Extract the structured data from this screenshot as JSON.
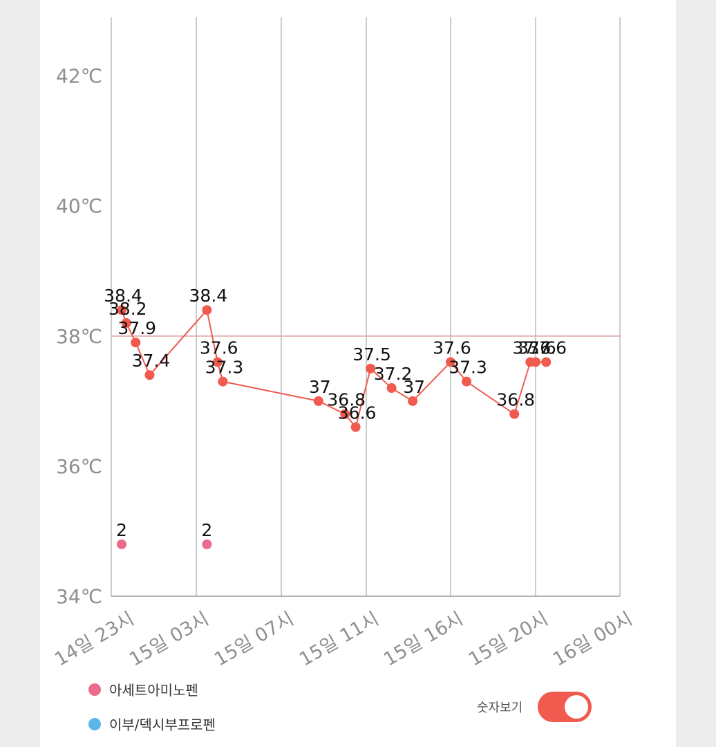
{
  "chart_data": {
    "type": "line",
    "y_ticks": [
      "34℃",
      "36℃",
      "38℃",
      "40℃",
      "42℃"
    ],
    "ylim": [
      34,
      42.9
    ],
    "x_ticks": [
      "14일 23시",
      "15일 03시",
      "15일 07시",
      "15일 11시",
      "15일 16시",
      "15일 20시",
      "16일 00시"
    ],
    "reference_line": 38,
    "series": [
      {
        "type": "line",
        "color": "#f05a4f",
        "points": [
          {
            "x": "14일 23:00",
            "y": 38.4,
            "label": "38.4"
          },
          {
            "x": "14일 23:15",
            "y": 38.2,
            "label": "38.2"
          },
          {
            "x": "14일 23:45",
            "y": 37.9,
            "label": "37.9"
          },
          {
            "x": "15일 00:30",
            "y": 37.4,
            "label": "37.4"
          },
          {
            "x": "15일 03:30",
            "y": 38.4,
            "label": "38.4"
          },
          {
            "x": "15일 04:00",
            "y": 37.6,
            "label": "37.6"
          },
          {
            "x": "15일 04:15",
            "y": 37.3,
            "label": "37.3"
          },
          {
            "x": "15일 08:45",
            "y": 37.0,
            "label": "37"
          },
          {
            "x": "15일 10:00",
            "y": 36.8,
            "label": "36.8"
          },
          {
            "x": "15일 10:30",
            "y": 36.6,
            "label": "36.6"
          },
          {
            "x": "15일 11:15",
            "y": 37.5,
            "label": "37.5"
          },
          {
            "x": "15일 12:30",
            "y": 37.2,
            "label": "37.2"
          },
          {
            "x": "15일 13:45",
            "y": 37.0,
            "label": "37"
          },
          {
            "x": "15일 16:00",
            "y": 37.6,
            "label": "37.6"
          },
          {
            "x": "15일 16:45",
            "y": 37.3,
            "label": "37.3"
          },
          {
            "x": "15일 19:00",
            "y": 36.8,
            "label": "36.8"
          },
          {
            "x": "15일 19:45",
            "y": 37.6,
            "label": "37.6"
          },
          {
            "x": "15일 20:00",
            "y": 37.6,
            "label": "37.6"
          },
          {
            "x": "15일 20:30",
            "y": 37.6,
            "label": "37.6"
          }
        ]
      }
    ],
    "medication_points": [
      {
        "x": "14일 23:00",
        "label": "2",
        "color": "#ec6a8c"
      },
      {
        "x": "15일 03:30",
        "label": "2",
        "color": "#ec6a8c"
      }
    ]
  },
  "legend": [
    {
      "label": "아세트아미노펜",
      "color": "#ec6a8c"
    },
    {
      "label": "이부/덱시부프로펜",
      "color": "#5ab7e8"
    }
  ],
  "toggle": {
    "label": "숫자보기",
    "on": true,
    "color": "#f05a4f"
  }
}
